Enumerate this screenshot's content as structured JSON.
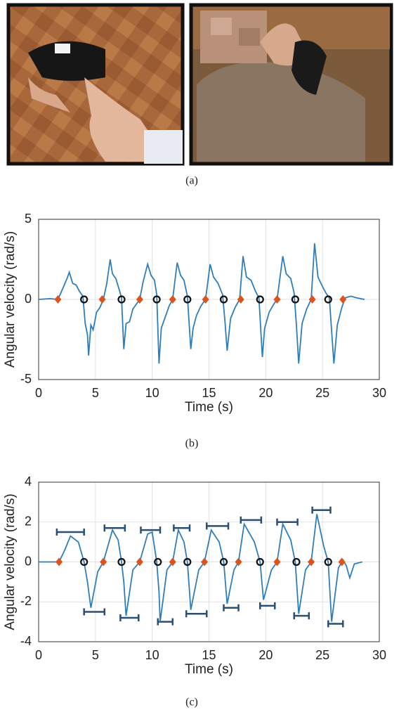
{
  "panel_a": {
    "caption": "(a)"
  },
  "chart_data": [
    {
      "type": "line",
      "caption": "(b)",
      "xlabel": "Time (s)",
      "ylabel": "Angular velocity (rad/s)",
      "xlim": [
        0,
        30
      ],
      "xticks": [
        0,
        5,
        10,
        15,
        20,
        25,
        30
      ],
      "ylim": [
        -5,
        5
      ],
      "yticks": [
        -5,
        0,
        5
      ],
      "grid": true,
      "series": [
        {
          "color": "#2f7ebc",
          "marker": "none",
          "x": [
            0,
            1,
            1.7,
            2.2,
            2.5,
            2.7,
            3,
            3.3,
            3.6,
            3.9,
            4.1,
            4.3,
            4.4,
            4.6,
            4.8,
            5.1,
            5.4,
            5.7,
            6,
            6.3,
            6.5,
            6.8,
            7.1,
            7.3,
            7.5,
            7.7,
            8,
            8.3,
            8.6,
            8.9,
            9.2,
            9.6,
            9.9,
            10.2,
            10.4,
            10.6,
            10.8,
            11.1,
            11.5,
            11.8,
            12.2,
            12.5,
            12.8,
            13.1,
            13.4,
            13.6,
            13.9,
            14.3,
            14.7,
            15.1,
            15.4,
            15.8,
            16.2,
            16.4,
            16.6,
            16.9,
            17.3,
            17.7,
            18,
            18.3,
            18.7,
            19.1,
            19.4,
            19.7,
            19.9,
            20.3,
            20.7,
            21,
            21.5,
            21.8,
            22.2,
            22.5,
            22.7,
            22.9,
            23.2,
            23.6,
            24,
            24.3,
            24.6,
            25,
            25.3,
            25.6,
            26,
            26.3,
            26.7,
            27,
            27.5,
            28,
            28.7
          ],
          "values": [
            0,
            0.05,
            0,
            0.8,
            1.3,
            1.7,
            1,
            0.9,
            0.5,
            0.2,
            -1.5,
            -2.2,
            -3.5,
            -1.6,
            -1.9,
            -0.8,
            -0.5,
            0,
            1,
            2.5,
            1.6,
            1.3,
            0.6,
            0.1,
            -3.1,
            -1.5,
            -1.4,
            -0.6,
            -0.3,
            0,
            1.1,
            2.2,
            1.5,
            1.2,
            0.3,
            -4,
            -1.8,
            -1.2,
            -0.4,
            0,
            2.3,
            1.5,
            1.2,
            0.2,
            -3.1,
            -1.8,
            -1,
            -0.4,
            0,
            2.2,
            1.4,
            1,
            0.3,
            -1.3,
            -3.2,
            -1.2,
            -0.5,
            0,
            2.7,
            1.4,
            1.2,
            0.5,
            0.1,
            -3.6,
            -1.8,
            -0.8,
            -0.3,
            0,
            2.7,
            1.6,
            1.3,
            0.4,
            -1.6,
            -4,
            -1.5,
            -0.6,
            0,
            3.5,
            1.4,
            0.8,
            0.4,
            0.1,
            -4,
            -1.6,
            -0.5,
            0.1,
            0.2,
            0.1,
            0
          ]
        },
        {
          "color": "#d9541e",
          "marker": "diamond",
          "x": [
            1.7,
            5.6,
            8.9,
            11.8,
            14.7,
            17.8,
            21,
            24.1,
            26.8
          ],
          "values": [
            0,
            0,
            0,
            0,
            0,
            0,
            0,
            0,
            0
          ]
        },
        {
          "color": "#111111",
          "marker": "circle",
          "x": [
            4,
            7.3,
            10.4,
            13.1,
            16.3,
            19.5,
            22.6,
            25.5
          ],
          "values": [
            0,
            0,
            0,
            0,
            0,
            0,
            0,
            0
          ]
        }
      ]
    },
    {
      "type": "line",
      "caption": "(c)",
      "xlabel": "Time (s)",
      "ylabel": "Angular velocity (rad/s)",
      "xlim": [
        0,
        30
      ],
      "xticks": [
        0,
        5,
        10,
        15,
        20,
        25,
        30
      ],
      "ylim": [
        -4,
        4
      ],
      "yticks": [
        -4,
        -2,
        0,
        2,
        4
      ],
      "grid": true,
      "series": [
        {
          "color": "#2f7ebc",
          "marker": "none",
          "x": [
            0,
            1.8,
            2.3,
            2.8,
            3.5,
            4,
            4.3,
            4.6,
            5.2,
            5.7,
            6.5,
            7,
            7.3,
            7.5,
            7.7,
            8.3,
            8.9,
            9.6,
            10,
            10.4,
            10.6,
            10.7,
            11.3,
            11.8,
            12.3,
            12.8,
            13.1,
            13.4,
            14.1,
            14.6,
            15.2,
            15.9,
            16.3,
            16.6,
            17.2,
            17.6,
            18.1,
            19,
            19.5,
            19.8,
            20.5,
            21,
            21.5,
            22.2,
            22.6,
            22.9,
            23.5,
            24,
            24.5,
            25.1,
            25.5,
            25.8,
            26.4,
            26.8,
            27.1,
            27.4,
            27.8,
            28.5
          ],
          "values": [
            0,
            0,
            0.6,
            1.3,
            1,
            0,
            -1,
            -2.3,
            -0.5,
            0,
            1.6,
            1.1,
            0,
            -1,
            -2.7,
            -0.4,
            0,
            1.4,
            1.5,
            0,
            -1.5,
            -3,
            -0.4,
            0,
            1.6,
            1,
            0,
            -2.4,
            -0.4,
            0,
            1.6,
            1,
            0,
            -2.1,
            -0.4,
            0,
            1.9,
            1,
            0,
            -1.9,
            -0.4,
            0,
            1.9,
            1.1,
            0,
            -2.6,
            -0.4,
            0,
            2.4,
            0.8,
            0,
            -3,
            -0.3,
            0.1,
            -0.2,
            -0.8,
            -0.1,
            0
          ]
        },
        {
          "color": "#d9541e",
          "marker": "diamond",
          "x": [
            1.8,
            5.7,
            8.9,
            11.8,
            14.6,
            17.6,
            21,
            24,
            26.7
          ],
          "values": [
            0,
            0,
            0,
            0,
            0,
            0,
            0,
            0,
            0
          ]
        },
        {
          "color": "#111111",
          "marker": "circle",
          "x": [
            4,
            7.3,
            10.5,
            13.1,
            16.3,
            19.5,
            22.7,
            25.5
          ],
          "values": [
            0,
            0,
            0,
            0,
            0,
            0,
            0,
            0
          ]
        }
      ],
      "intervals": {
        "color": "#2a4f72",
        "y": [
          1.5,
          1.7,
          1.6,
          1.7,
          1.8,
          2.1,
          2,
          2.6,
          -2.5,
          -2.8,
          -3,
          -2.6,
          -2.3,
          -2.2,
          -2.7,
          -3.1
        ],
        "x0": [
          1.6,
          5.8,
          9,
          11.9,
          14.8,
          17.8,
          21,
          24.1,
          4,
          7.2,
          10.5,
          13,
          16.3,
          19.5,
          22.5,
          25.5
        ],
        "x1": [
          4,
          7.6,
          10.7,
          13.3,
          16.7,
          19.6,
          22.8,
          25.7,
          5.8,
          8.8,
          11.8,
          14.8,
          17.6,
          20.8,
          23.8,
          26.8
        ]
      }
    }
  ]
}
